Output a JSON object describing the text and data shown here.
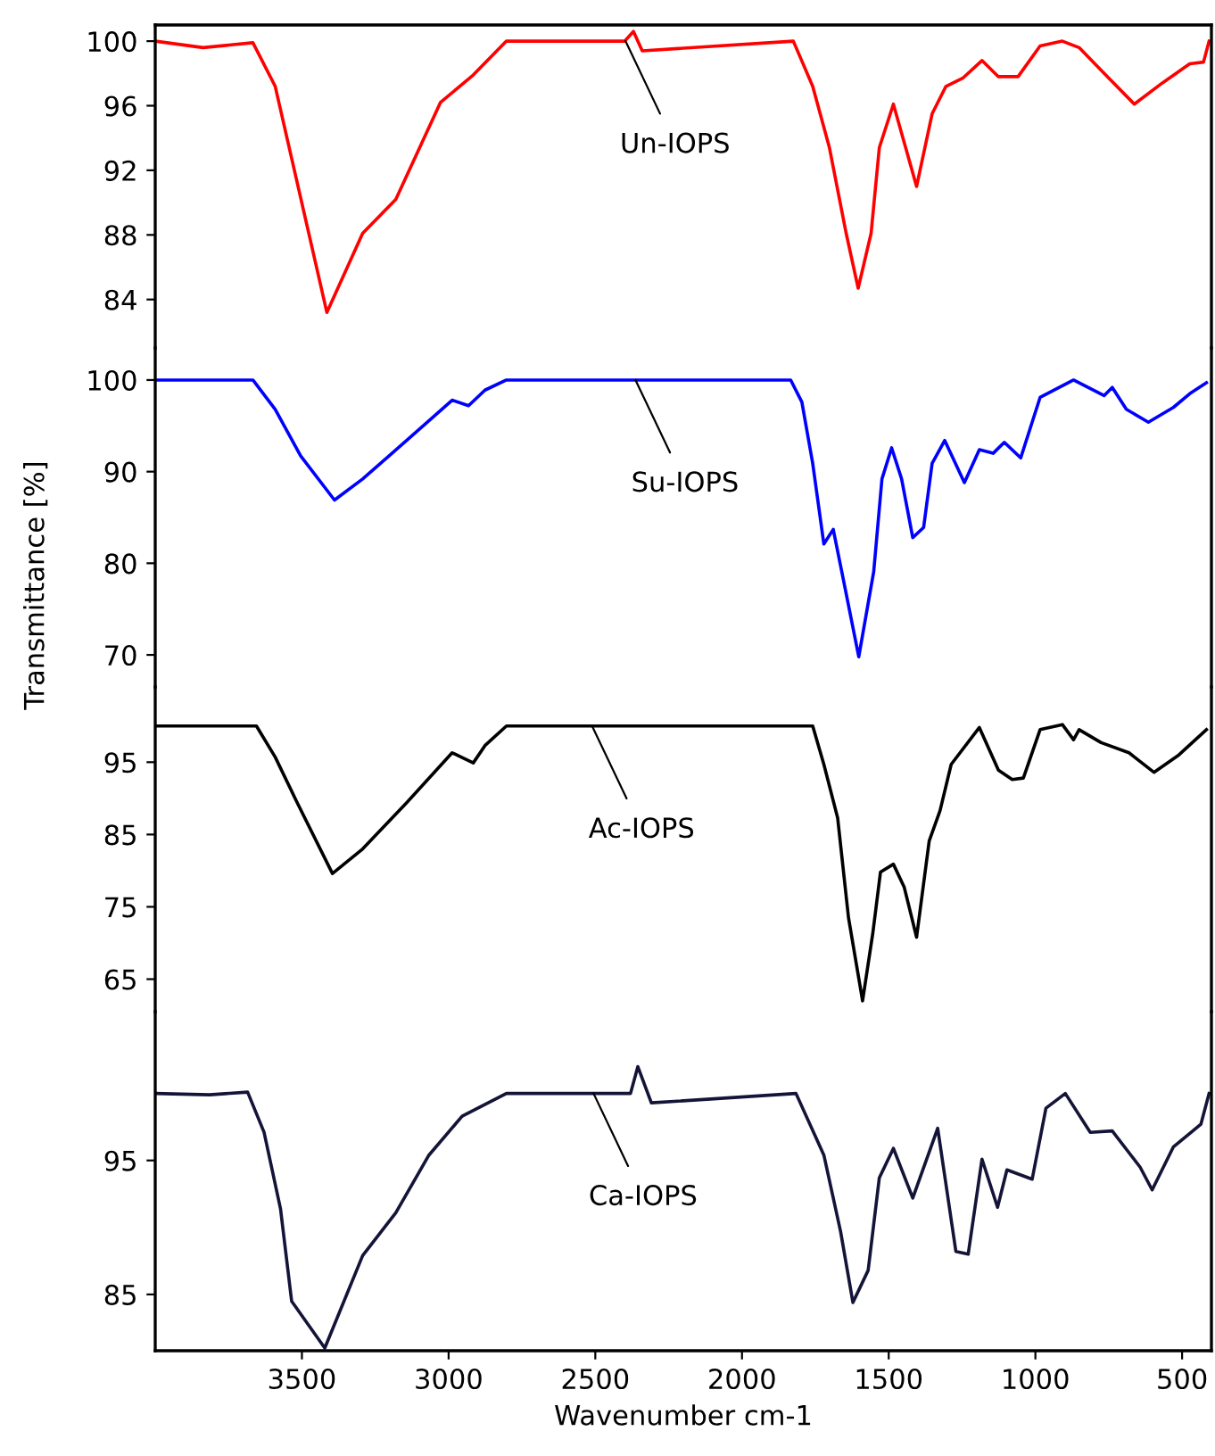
{
  "chart_data": [
    {
      "type": "line",
      "xlim": [
        4000,
        400
      ],
      "ylim": [
        81,
        101
      ],
      "yticks": [
        84,
        88,
        92,
        96,
        100
      ],
      "tick_labels": "y",
      "annotations": [
        {
          "text": "Un-IOPS",
          "x": 2397,
          "y": 100
        }
      ],
      "series": [
        {
          "color": "#ff0000",
          "x": [
            4000,
            3837,
            3667,
            3591,
            3415,
            3293,
            3180,
            3028,
            2916,
            2803,
            2400,
            2370,
            2340,
            1825,
            1759,
            1702,
            1645,
            1604,
            1560,
            1532,
            1484,
            1405,
            1352,
            1305,
            1248,
            1182,
            1126,
            1059,
            984,
            908,
            851,
            776,
            663,
            568,
            474,
            427,
            408
          ],
          "values": [
            100,
            99.6,
            99.9,
            97.2,
            83.2,
            88.1,
            90.2,
            96.2,
            97.9,
            100,
            100,
            100.6,
            99.4,
            100,
            97.2,
            93.4,
            88.1,
            84.7,
            88.1,
            93.4,
            96.1,
            91.0,
            95.5,
            97.2,
            97.7,
            98.8,
            97.8,
            97.8,
            99.7,
            100,
            99.6,
            98.2,
            96.1,
            97.4,
            98.6,
            98.7,
            100
          ]
        }
      ]
    },
    {
      "type": "line",
      "ylabel": "Transmittance [%]",
      "xlim": [
        4000,
        400
      ],
      "ylim": [
        66.5,
        103.5
      ],
      "yticks": [
        70,
        80,
        90,
        100
      ],
      "tick_labels": "y",
      "annotations": [
        {
          "text": "Su-IOPS",
          "x": 2363,
          "y": 100
        }
      ],
      "series": [
        {
          "color": "#0000ff",
          "x": [
            4000,
            3667,
            3591,
            3504,
            3389,
            3293,
            3143,
            2988,
            2932,
            2876,
            2803,
            1834,
            1796,
            1759,
            1721,
            1689,
            1655,
            1602,
            1551,
            1523,
            1490,
            1456,
            1418,
            1381,
            1352,
            1309,
            1242,
            1191,
            1144,
            1106,
            1050,
            984,
            870,
            766,
            738,
            690,
            615,
            530,
            474,
            417
          ],
          "values": [
            100,
            100,
            96.8,
            91.7,
            86.9,
            89.2,
            93.4,
            97.8,
            97.2,
            98.9,
            100,
            100,
            97.6,
            90.9,
            82.1,
            83.7,
            78.3,
            69.8,
            79.1,
            89.2,
            92.6,
            89.2,
            82.8,
            83.9,
            90.9,
            93.4,
            88.8,
            92.4,
            92.0,
            93.2,
            91.5,
            98.1,
            100,
            98.3,
            99.2,
            96.8,
            95.4,
            97.0,
            98.5,
            99.7
          ]
        }
      ]
    },
    {
      "type": "line",
      "xlim": [
        4000,
        400
      ],
      "ylim": [
        60.5,
        105.4
      ],
      "yticks": [
        65,
        75,
        85,
        95
      ],
      "tick_labels": "y",
      "annotations": [
        {
          "text": "Ac-IOPS",
          "x": 2511,
          "y": 100
        }
      ],
      "series": [
        {
          "color": "#000000",
          "x": [
            4000,
            3655,
            3591,
            3516,
            3396,
            3293,
            3143,
            2988,
            2916,
            2876,
            2803,
            1759,
            1721,
            1674,
            1637,
            1589,
            1554,
            1528,
            1484,
            1447,
            1405,
            1362,
            1325,
            1287,
            1191,
            1126,
            1079,
            1041,
            984,
            908,
            870,
            851,
            776,
            681,
            596,
            511,
            417
          ],
          "values": [
            100,
            100,
            95.7,
            89.4,
            79.6,
            83.0,
            89.4,
            96.3,
            94.9,
            97.3,
            100,
            100,
            94.7,
            87.3,
            73.5,
            62.0,
            71.4,
            79.8,
            80.9,
            77.7,
            70.8,
            84.1,
            88.3,
            94.7,
            99.8,
            93.9,
            92.6,
            92.8,
            99.5,
            100.2,
            98.1,
            99.5,
            97.7,
            96.3,
            93.6,
            96.0,
            99.5
          ]
        }
      ]
    },
    {
      "type": "line",
      "xlabel": "Wavenumber cm-1",
      "xlim": [
        4000,
        400
      ],
      "xticks": [
        3500,
        3000,
        2500,
        2000,
        1500,
        1000,
        500
      ],
      "ylim": [
        80.8,
        106.1
      ],
      "yticks": [
        85,
        95
      ],
      "annotations": [
        {
          "text": "Ca-IOPS",
          "x": 2506,
          "y": 100
        }
      ],
      "series": [
        {
          "color": "#141438",
          "x": [
            4000,
            3815,
            3685,
            3629,
            3573,
            3535,
            3422,
            3293,
            3180,
            3067,
            2954,
            2803,
            2380,
            2355,
            2309,
            1816,
            1721,
            1664,
            1622,
            1570,
            1532,
            1484,
            1418,
            1333,
            1271,
            1229,
            1182,
            1129,
            1097,
            1011,
            964,
            898,
            813,
            738,
            643,
            602,
            530,
            436,
            408
          ],
          "values": [
            100,
            99.9,
            100.1,
            97.1,
            91.4,
            84.5,
            81.0,
            87.9,
            91.1,
            95.4,
            98.3,
            100,
            100,
            102.0,
            99.3,
            100,
            95.4,
            89.7,
            84.4,
            86.8,
            93.7,
            95.9,
            92.2,
            97.4,
            88.2,
            88.0,
            95.1,
            91.5,
            94.3,
            93.6,
            98.9,
            100,
            97.1,
            97.2,
            94.5,
            92.8,
            96.0,
            97.7,
            100
          ]
        }
      ]
    }
  ]
}
